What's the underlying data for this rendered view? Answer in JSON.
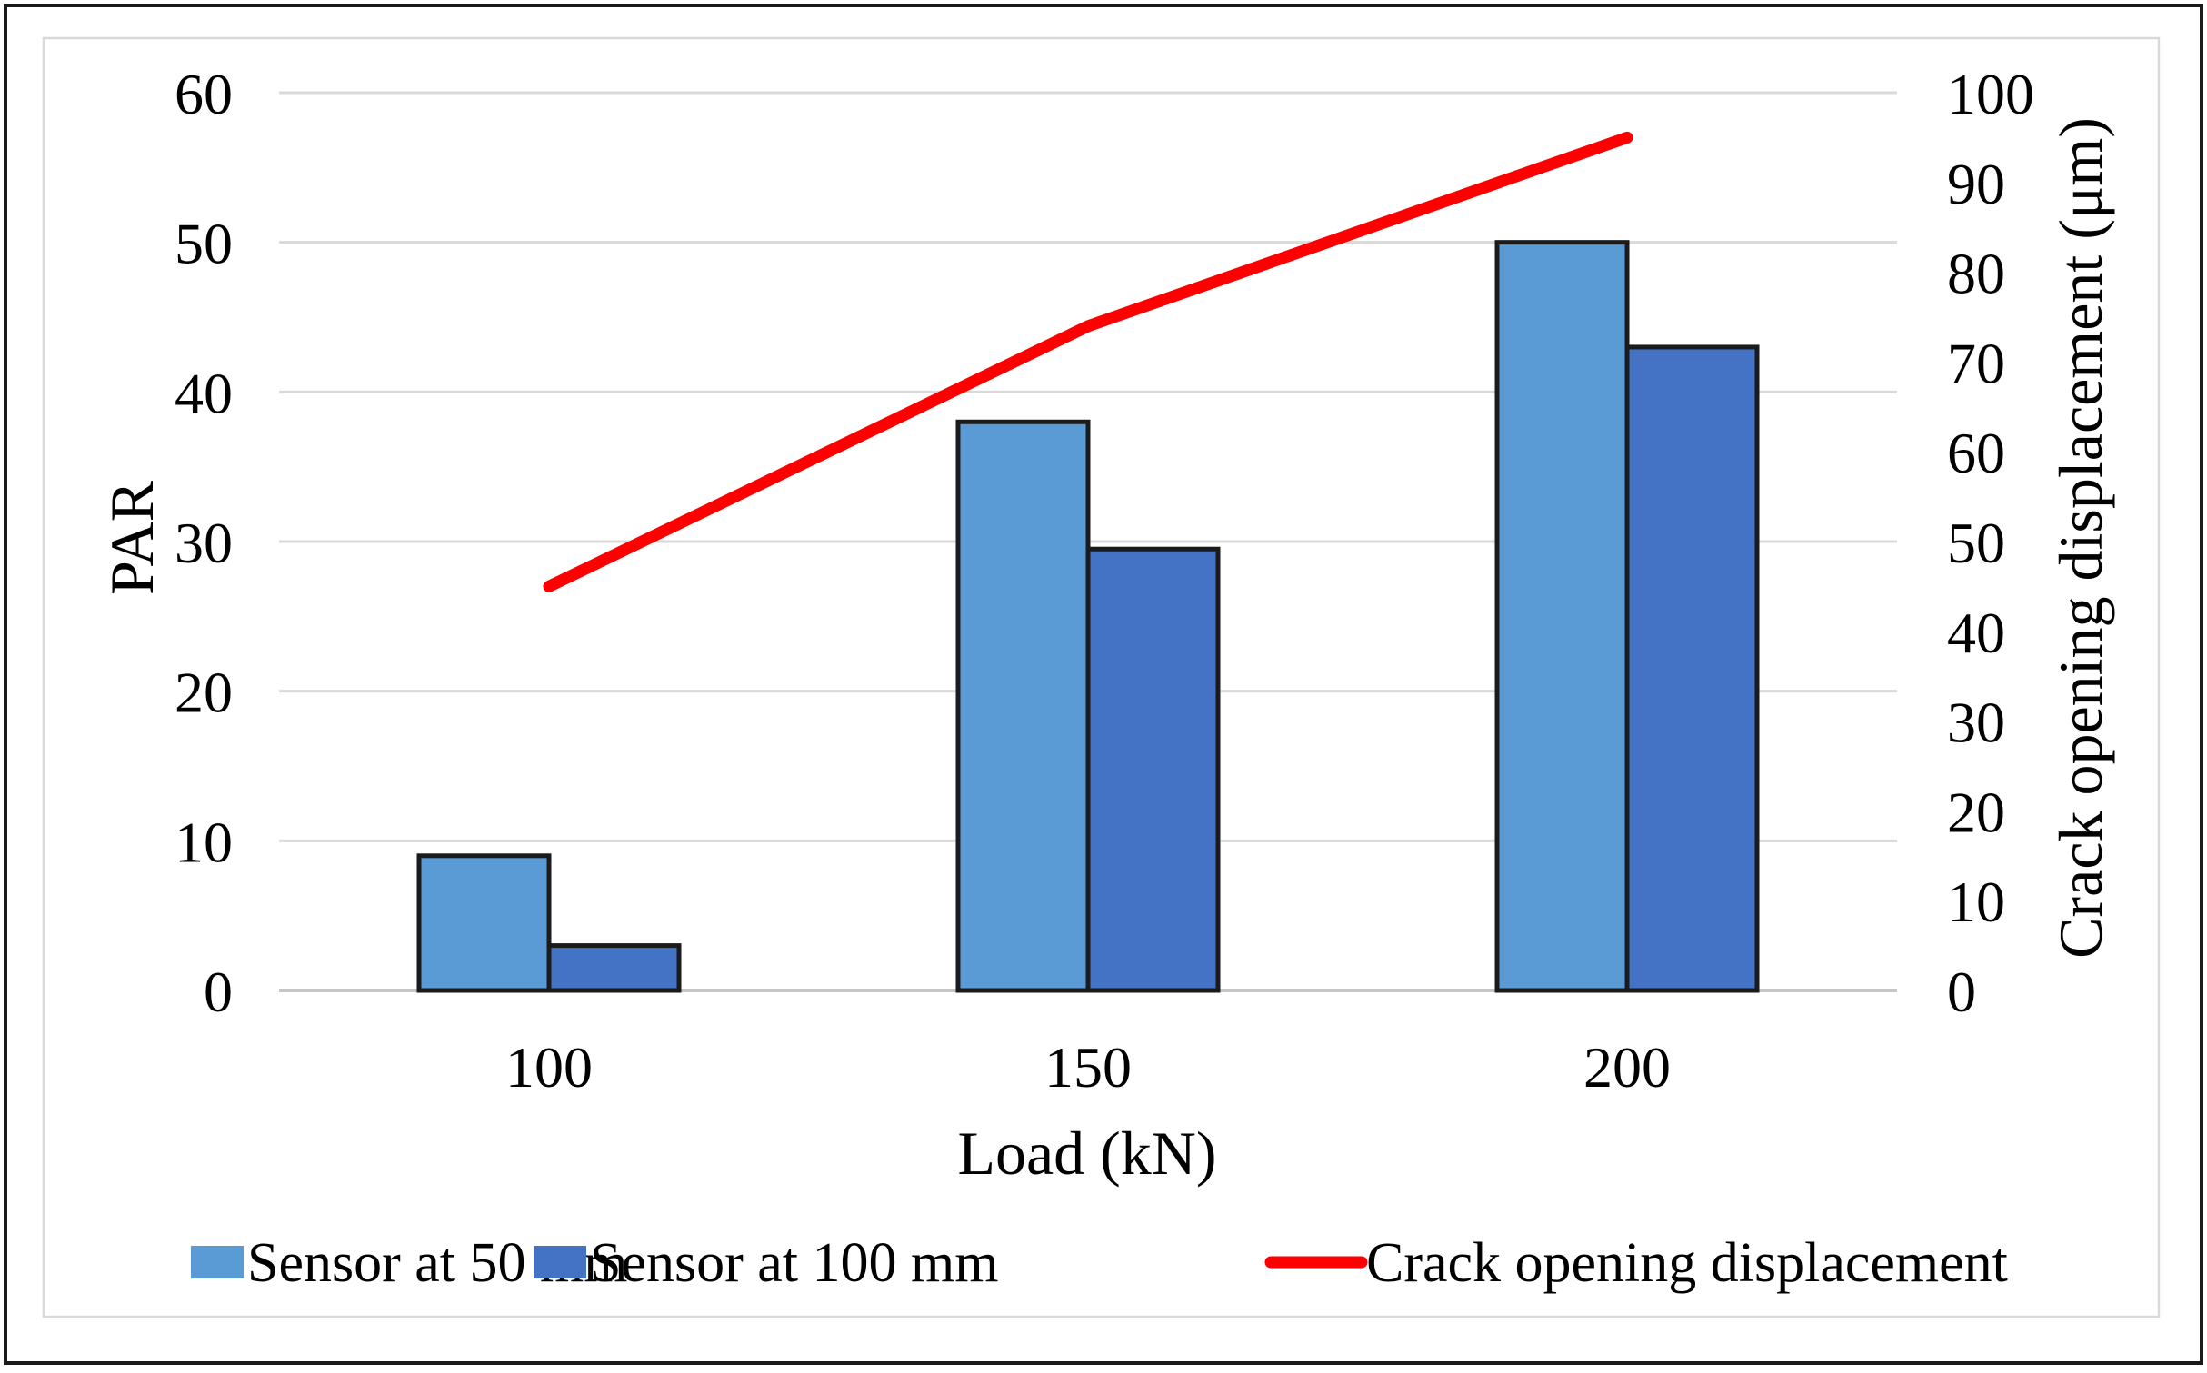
{
  "chart_data": {
    "type": "combo-bar-line",
    "categories": [
      "100",
      "150",
      "200"
    ],
    "bar_series": [
      {
        "name": "Sensor at 50 mm",
        "color": "#5B9BD5",
        "values": [
          9,
          38,
          50
        ]
      },
      {
        "name": "Sensor at 100 mm",
        "color": "#4472C4",
        "values": [
          3,
          29.5,
          43
        ]
      }
    ],
    "line_series": {
      "name": "Crack opening displacement",
      "color": "#FF0000",
      "axis": "right",
      "values": [
        45,
        74,
        95
      ]
    },
    "xlabel": "Load (kN)",
    "ylabel_left": "PAR",
    "ylim_left": [
      0,
      60
    ],
    "ytick_step_left": 10,
    "ylabel_right": "Crack opening displacement (μm)",
    "ylim_right": [
      0,
      100
    ],
    "ytick_step_right": 10,
    "grid": true,
    "legend_position": "bottom",
    "colors": {
      "gridline": "#D9D9D9",
      "axis_line": "#C6C6C6",
      "bar_border": "#1B1B1B",
      "chart_border": "#D9D9D9",
      "frame": "#1A1A1A",
      "background": "#FFFFFF"
    }
  }
}
